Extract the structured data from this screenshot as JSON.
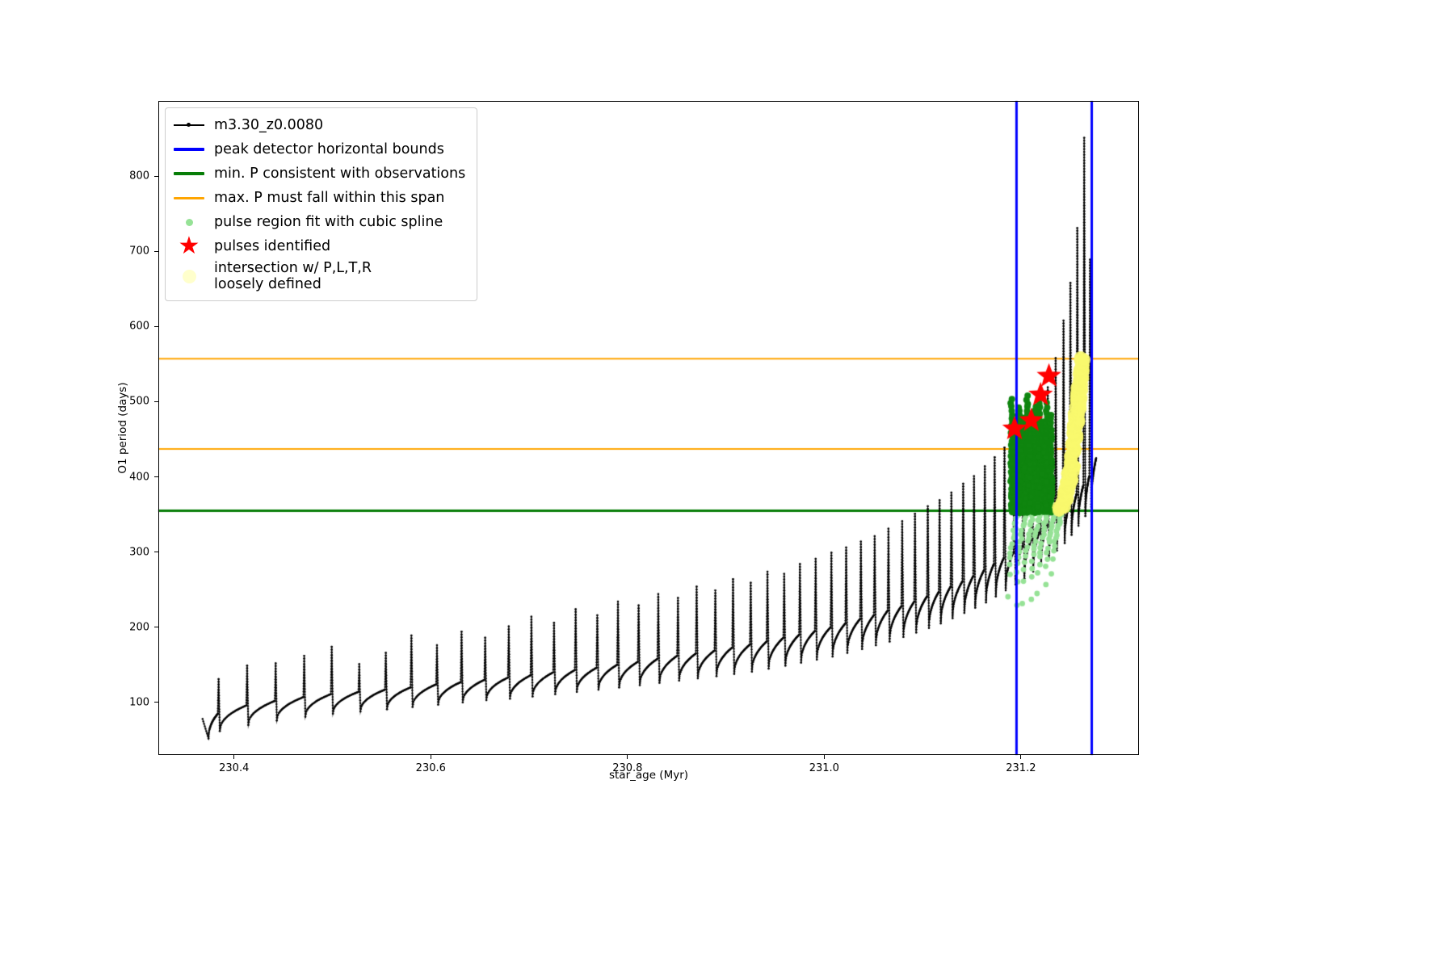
{
  "legend": {
    "items": [
      {
        "label": "m3.30_z0.0080",
        "type": "line-dot",
        "color": "#000000"
      },
      {
        "label": "peak detector horizontal bounds",
        "type": "line",
        "color": "#0000ff"
      },
      {
        "label": "min. P consistent with observations",
        "type": "line",
        "color": "#077d07"
      },
      {
        "label": "max. P must fall within this span",
        "type": "line",
        "color": "#ffa500"
      },
      {
        "label": "pulse region fit with cubic spline",
        "type": "dot",
        "color": "#96e296"
      },
      {
        "label": "pulses identified",
        "type": "star",
        "color": "#ff0000"
      },
      {
        "label": "intersection w/ P,L,T,R\nloosely defined",
        "type": "big-dot",
        "color": "#ffffcc"
      }
    ]
  },
  "chart_data": {
    "type": "line",
    "title": "",
    "xlabel": "star_age (Myr)",
    "ylabel": "O1 period (days)",
    "xlim": [
      230.323,
      231.32
    ],
    "ylim": [
      30,
      900
    ],
    "x_tick_values": [
      230.4,
      230.6,
      230.8,
      231.0,
      231.2
    ],
    "x_tick_labels": [
      "230.4",
      "230.6",
      "230.8",
      "231.0",
      "231.2"
    ],
    "y_tick_values": [
      100,
      200,
      300,
      400,
      500,
      600,
      700,
      800
    ],
    "y_tick_labels": [
      "100",
      "200",
      "300",
      "400",
      "500",
      "600",
      "700",
      "800"
    ],
    "grid": false,
    "legend_position": "upper-left",
    "series": {
      "name": "m3.30_z0.0080",
      "color": "#000000",
      "start": [
        230.368,
        78
      ],
      "dip_start": [
        230.374,
        52
      ],
      "end": [
        231.2765,
        425
      ],
      "pulses": [
        [
          230.385,
          85,
          131,
          62
        ],
        [
          230.414,
          96,
          149,
          70
        ],
        [
          230.443,
          102,
          152,
          76
        ],
        [
          230.472,
          107,
          162,
          81
        ],
        [
          230.5,
          111,
          174,
          85
        ],
        [
          230.528,
          114,
          151,
          88
        ],
        [
          230.555,
          117,
          166,
          91
        ],
        [
          230.581,
          120,
          189,
          94
        ],
        [
          230.607,
          124,
          176,
          97
        ],
        [
          230.632,
          127,
          194,
          100
        ],
        [
          230.656,
          130,
          186,
          103
        ],
        [
          230.68,
          133,
          201,
          105
        ],
        [
          230.703,
          136,
          214,
          108
        ],
        [
          230.726,
          140,
          206,
          111
        ],
        [
          230.748,
          143,
          224,
          114
        ],
        [
          230.77,
          146,
          216,
          117
        ],
        [
          230.791,
          150,
          234,
          120
        ],
        [
          230.812,
          154,
          229,
          123
        ],
        [
          230.832,
          158,
          244,
          126
        ],
        [
          230.852,
          162,
          239,
          129
        ],
        [
          230.871,
          165,
          254,
          132
        ],
        [
          230.89,
          169,
          249,
          135
        ],
        [
          230.908,
          173,
          264,
          138
        ],
        [
          230.926,
          177,
          259,
          141
        ],
        [
          230.943,
          181,
          274,
          145
        ],
        [
          230.96,
          186,
          271,
          149
        ],
        [
          230.976,
          190,
          284,
          153
        ],
        [
          230.992,
          195,
          291,
          157
        ],
        [
          231.008,
          200,
          299,
          161
        ],
        [
          231.023,
          205,
          306,
          166
        ],
        [
          231.038,
          211,
          314,
          171
        ],
        [
          231.052,
          216,
          321,
          176
        ],
        [
          231.066,
          222,
          331,
          181
        ],
        [
          231.08,
          228,
          341,
          187
        ],
        [
          231.093,
          234,
          351,
          193
        ],
        [
          231.106,
          241,
          361,
          199
        ],
        [
          231.118,
          247,
          369,
          205
        ],
        [
          231.13,
          254,
          379,
          212
        ],
        [
          231.142,
          261,
          391,
          219
        ],
        [
          231.153,
          268,
          401,
          226
        ],
        [
          231.164,
          276,
          414,
          233
        ],
        [
          231.174,
          284,
          426,
          241
        ],
        [
          231.184,
          292,
          439,
          249
        ],
        [
          231.194,
          300,
          453,
          257
        ],
        [
          231.203,
          308,
          464,
          265
        ],
        [
          231.212,
          317,
          479,
          274
        ],
        [
          231.22,
          326,
          498,
          283
        ],
        [
          231.228,
          335,
          519,
          292
        ],
        [
          231.236,
          345,
          558,
          302
        ],
        [
          231.244,
          355,
          608,
          312
        ],
        [
          231.251,
          366,
          658,
          323
        ],
        [
          231.258,
          377,
          731,
          335
        ],
        [
          231.265,
          389,
          851,
          348
        ],
        [
          231.271,
          401,
          689,
          360
        ]
      ]
    },
    "vlines": {
      "label": "peak detector horizontal bounds",
      "color": "#0000ff",
      "width": 3,
      "x": [
        231.1955,
        231.272
      ]
    },
    "hlines": [
      {
        "label": "max. P must fall within this span",
        "color": "#ffa500",
        "width": 2,
        "y": 557
      },
      {
        "label": "max. P must fall within this span",
        "color": "#ffa500",
        "width": 2,
        "y": 437
      },
      {
        "label": "min. P consistent with observations",
        "color": "#077d07",
        "width": 3,
        "y": 355
      }
    ],
    "pale_cluster": {
      "label": "pulse region fit with cubic spline",
      "color": "#96e296",
      "r": 3.4,
      "x_span": 0.0095,
      "y_top": 352,
      "arcs": [
        [
          231.1875,
          242
        ],
        [
          231.195,
          229
        ],
        [
          231.2025,
          231
        ],
        [
          231.21,
          237
        ],
        [
          231.2175,
          245
        ],
        [
          231.225,
          257
        ],
        [
          231.232,
          271
        ]
      ]
    },
    "green_cluster": {
      "label": "pulse region fit with cubic spline",
      "color": "#0f850f",
      "r": 4.0,
      "y_base": 353,
      "columns": [
        [
          231.1905,
          507
        ],
        [
          231.1945,
          468
        ],
        [
          231.1985,
          497
        ],
        [
          231.2025,
          481
        ],
        [
          231.2065,
          511
        ],
        [
          231.2105,
          464
        ],
        [
          231.2145,
          494
        ],
        [
          231.2185,
          504
        ],
        [
          231.2225,
          476
        ],
        [
          231.2265,
          499
        ],
        [
          231.2305,
          486
        ]
      ],
      "fill_box": [
        231.1895,
        231.2325,
        353,
        442
      ],
      "fill_count": 260
    },
    "yellow_band": {
      "label": "intersection w/ P,L,T,R loosely defined",
      "color": "#f9f96e",
      "r": 8,
      "points": [
        [
          231.2395,
          358
        ],
        [
          231.2425,
          363
        ],
        [
          231.2455,
          373
        ],
        [
          231.2485,
          390
        ],
        [
          231.2515,
          415
        ],
        [
          231.254,
          444
        ],
        [
          231.2565,
          477
        ],
        [
          231.259,
          511
        ],
        [
          231.2615,
          543
        ],
        [
          231.2635,
          557
        ]
      ]
    },
    "stars": {
      "label": "pulses identified",
      "color": "#ff0000",
      "size": 16,
      "points": [
        [
          231.1935,
          464
        ],
        [
          231.2105,
          475
        ],
        [
          231.22,
          509
        ],
        [
          231.2285,
          534
        ]
      ]
    }
  }
}
